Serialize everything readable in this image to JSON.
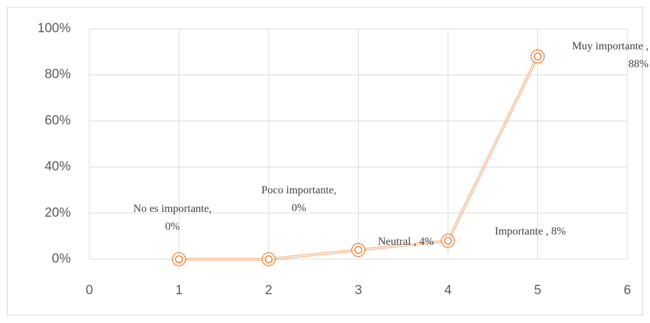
{
  "chart_data": {
    "type": "scatter",
    "x": [
      1,
      2,
      3,
      4,
      5
    ],
    "values": [
      0,
      0,
      4,
      8,
      88
    ],
    "value_labels": [
      "No es importante, 0%",
      "Poco importante, 0%",
      "Neutral , 4%",
      "Importante , 8%",
      "Muy importante , 88%"
    ],
    "color": "#ed7d31",
    "xlim": [
      0,
      6
    ],
    "xticks": [
      0,
      1,
      2,
      3,
      4,
      5,
      6
    ],
    "ylim": [
      0,
      100
    ],
    "yticks": [
      {
        "value": 0,
        "label": "0%"
      },
      {
        "value": 20,
        "label": "20%"
      },
      {
        "value": 40,
        "label": "40%"
      },
      {
        "value": 60,
        "label": "60%"
      },
      {
        "value": 80,
        "label": "80%"
      },
      {
        "value": 100,
        "label": "100%"
      }
    ],
    "grid": true
  }
}
